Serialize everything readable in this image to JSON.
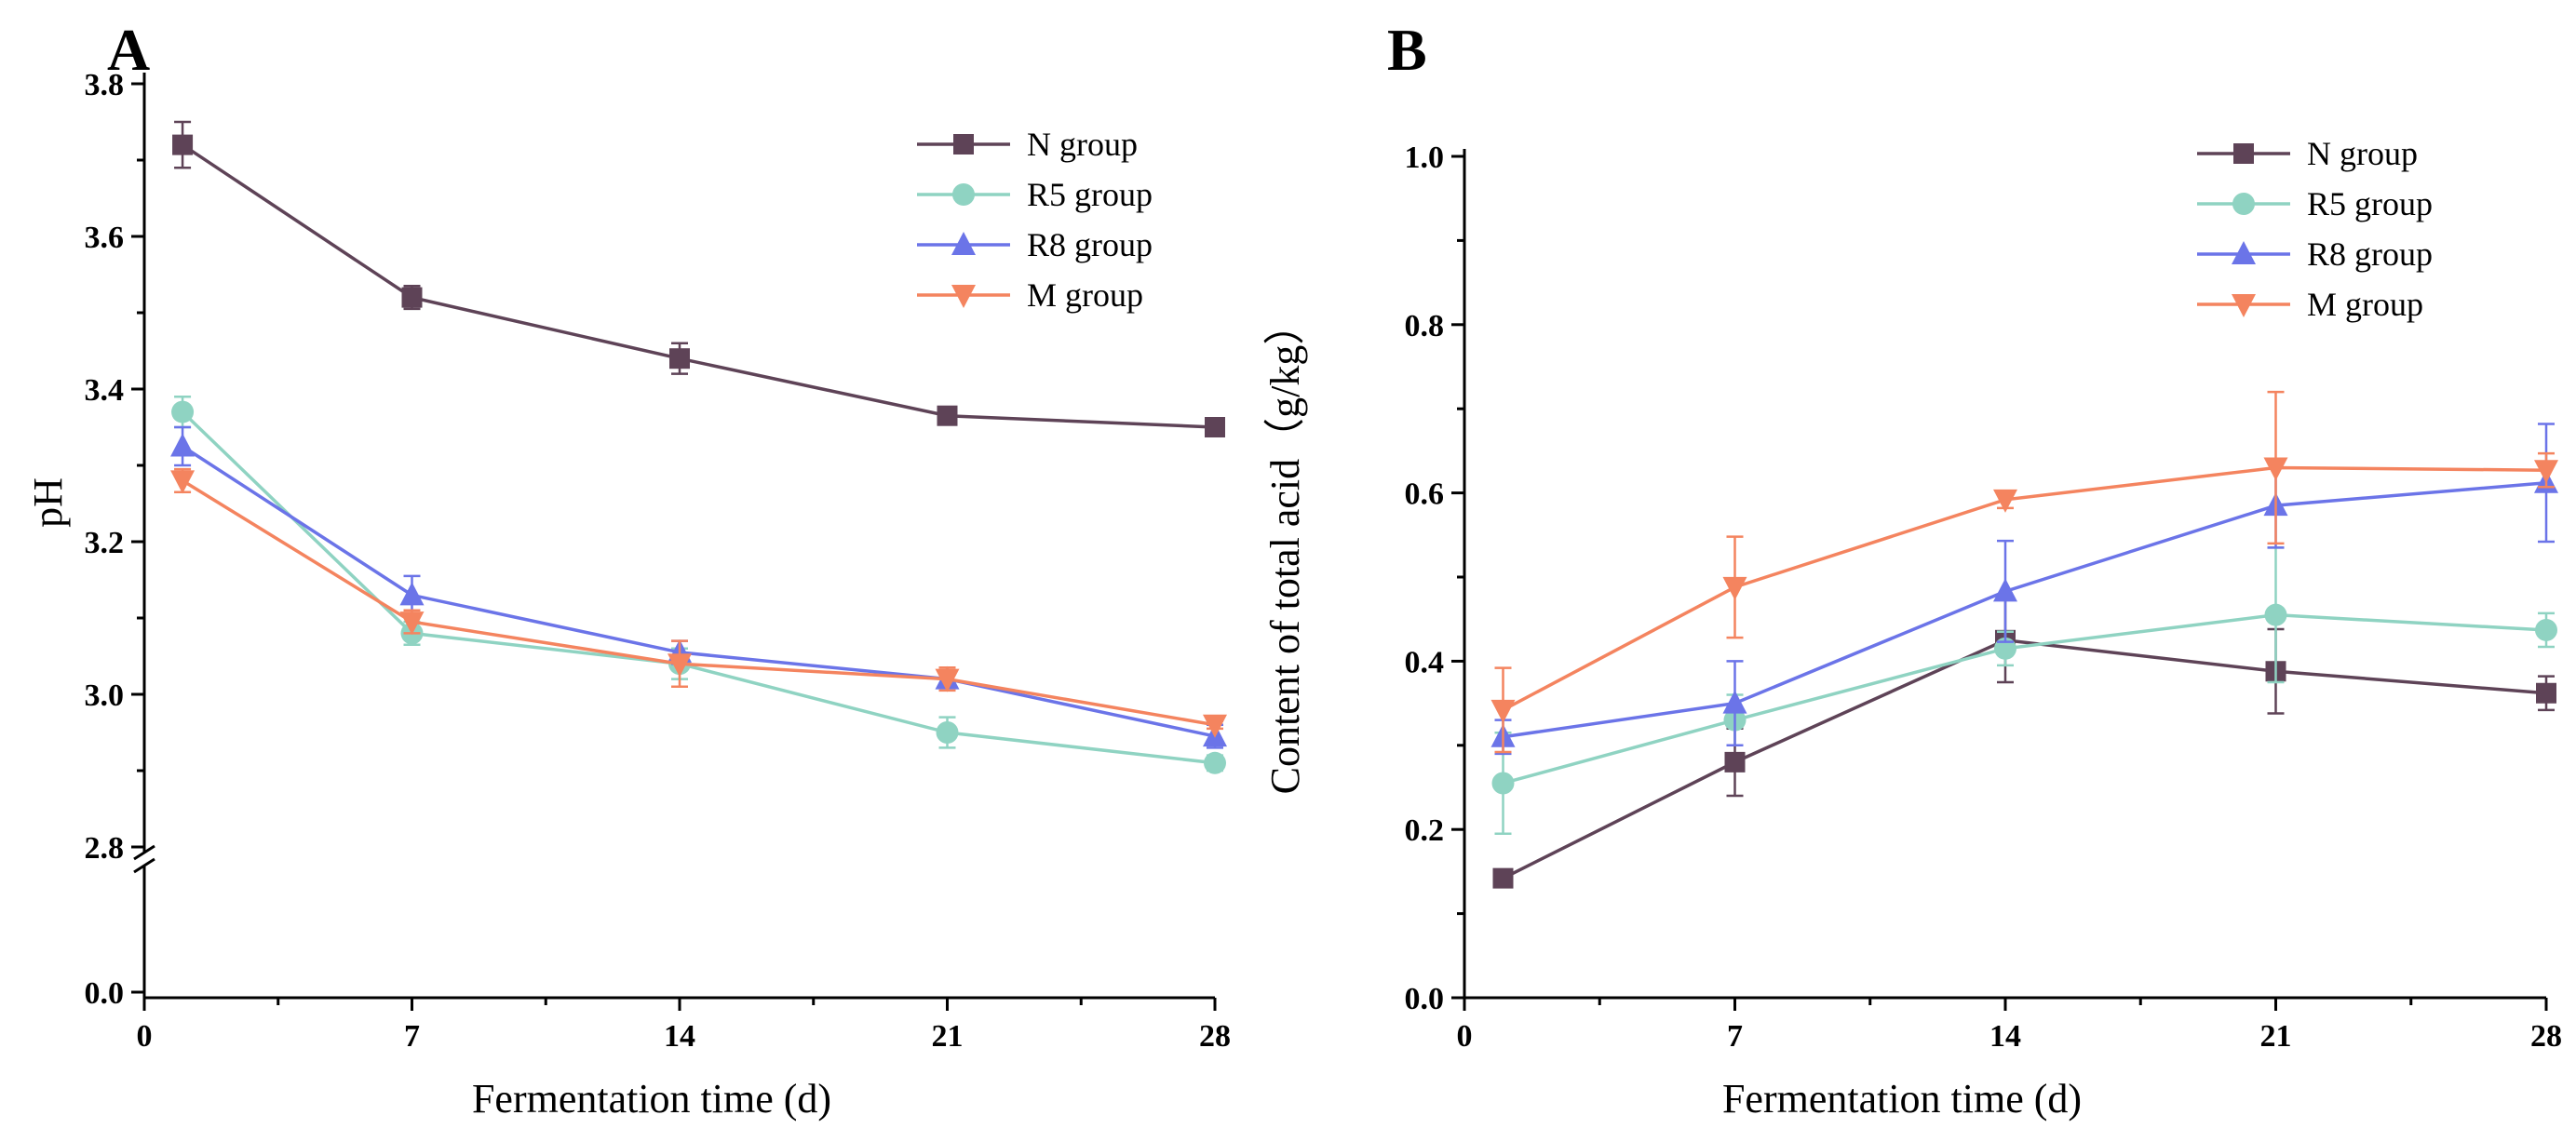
{
  "chart_data": [
    {
      "panel": "A",
      "type": "line",
      "title": "",
      "xlabel": "Fermentation time (d)",
      "ylabel": "pH",
      "x": [
        1,
        7,
        14,
        21,
        28
      ],
      "xticks": [
        0,
        7,
        14,
        21,
        28
      ],
      "xlim": [
        0,
        28
      ],
      "y_break": {
        "lower": [
          0.0,
          0.0
        ],
        "upper": [
          2.8,
          3.8
        ]
      },
      "yticks": [
        0.0,
        2.8,
        3.0,
        3.2,
        3.4,
        3.6,
        3.8
      ],
      "ytick_labels": [
        "0.0",
        "2.8",
        "3.0",
        "3.2",
        "3.4",
        "3.6",
        "3.8"
      ],
      "grid": false,
      "legend_position": "top-right",
      "series": [
        {
          "name": "N group",
          "color": "#5e4357",
          "marker": "square",
          "values": [
            3.72,
            3.52,
            3.44,
            3.365,
            3.35
          ],
          "errors": [
            0.03,
            0.015,
            0.02,
            0.01,
            0.005
          ]
        },
        {
          "name": "R5 group",
          "color": "#8fd3c2",
          "marker": "circle",
          "values": [
            3.37,
            3.08,
            3.04,
            2.95,
            2.91
          ],
          "errors": [
            0.02,
            0.015,
            0.02,
            0.02,
            0.01
          ]
        },
        {
          "name": "R8 group",
          "color": "#6b74e8",
          "marker": "triangle-up",
          "values": [
            3.325,
            3.13,
            3.055,
            3.02,
            2.945
          ],
          "errors": [
            0.025,
            0.025,
            0.015,
            0.01,
            0.015
          ]
        },
        {
          "name": "M group",
          "color": "#f4845f",
          "marker": "triangle-down",
          "values": [
            3.28,
            3.095,
            3.04,
            3.02,
            2.96
          ],
          "errors": [
            0.015,
            0.015,
            0.03,
            0.015,
            0.005
          ]
        }
      ]
    },
    {
      "panel": "B",
      "type": "line",
      "title": "",
      "xlabel": "Fermentation time (d)",
      "ylabel": "Content of total acid（g/kg）",
      "x": [
        1,
        7,
        14,
        21,
        28
      ],
      "xticks": [
        0,
        7,
        14,
        21,
        28
      ],
      "xlim": [
        0,
        28
      ],
      "ylim": [
        0.0,
        1.0
      ],
      "yticks": [
        0.0,
        0.2,
        0.4,
        0.6,
        0.8,
        1.0
      ],
      "ytick_labels": [
        "0.0",
        "0.2",
        "0.4",
        "0.6",
        "0.8",
        "1.0"
      ],
      "grid": false,
      "legend_position": "top-right",
      "series": [
        {
          "name": "N group",
          "color": "#5e4357",
          "marker": "square",
          "values": [
            0.142,
            0.28,
            0.425,
            0.388,
            0.362
          ],
          "errors": [
            0.005,
            0.04,
            0.05,
            0.05,
            0.02
          ]
        },
        {
          "name": "R5 group",
          "color": "#8fd3c2",
          "marker": "circle",
          "values": [
            0.255,
            0.33,
            0.415,
            0.455,
            0.437
          ],
          "errors": [
            0.06,
            0.03,
            0.02,
            0.08,
            0.02
          ]
        },
        {
          "name": "R8 group",
          "color": "#6b74e8",
          "marker": "triangle-up",
          "values": [
            0.31,
            0.35,
            0.483,
            0.585,
            0.612
          ],
          "errors": [
            0.02,
            0.05,
            0.06,
            0.05,
            0.07
          ]
        },
        {
          "name": "M group",
          "color": "#f4845f",
          "marker": "triangle-down",
          "values": [
            0.342,
            0.488,
            0.592,
            0.63,
            0.627
          ],
          "errors": [
            0.05,
            0.06,
            0.01,
            0.09,
            0.02
          ]
        }
      ]
    }
  ]
}
